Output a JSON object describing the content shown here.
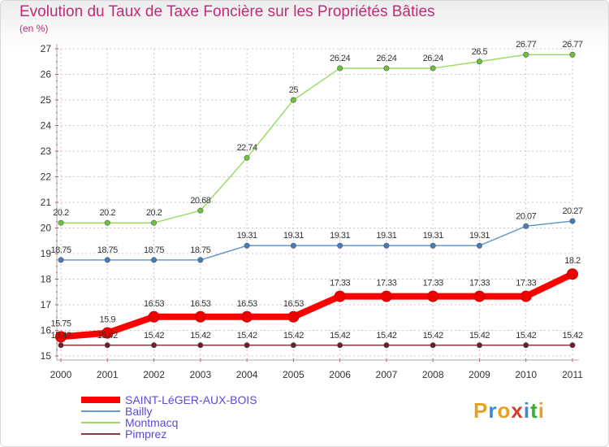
{
  "title": "Evolution du Taux de Taxe Foncière sur les Propriétés Bâties",
  "unit_label": "(en %)",
  "logo": {
    "text": "Proxiti",
    "letters": [
      "P",
      "r",
      "o",
      "x",
      "i",
      "t",
      "i"
    ],
    "colors": [
      "#e8a020",
      "#3a8ad8",
      "#e8a020",
      "#d93a2a",
      "#3a8ad8",
      "#3aa83a",
      "#e8a020"
    ]
  },
  "chart_data": {
    "type": "line",
    "x": [
      "2000",
      "2001",
      "2002",
      "2003",
      "2004",
      "2005",
      "2006",
      "2007",
      "2008",
      "2009",
      "2010",
      "2011"
    ],
    "ylim": [
      15,
      27
    ],
    "yticks": [
      "15",
      "16",
      "17",
      "18",
      "19",
      "20",
      "21",
      "22",
      "23",
      "24",
      "25",
      "26",
      "27"
    ],
    "grid": true,
    "legend_position": "bottom-left",
    "series": [
      {
        "name": "Montmacq",
        "color": "#99dd66",
        "marker": "#6cc23a",
        "thick": false,
        "values": [
          20.2,
          20.2,
          20.2,
          20.68,
          22.74,
          25,
          26.24,
          26.24,
          26.24,
          26.5,
          26.77,
          26.77
        ],
        "labels": [
          "20.2",
          "20.2",
          "20.2",
          "20.68",
          "22.74",
          "25",
          "26.24",
          "26.24",
          "26.24",
          "26.5",
          "26.77",
          "26.77"
        ]
      },
      {
        "name": "Bailly",
        "color": "#6699cc",
        "marker": "#3f7fc2",
        "thick": false,
        "values": [
          18.75,
          18.75,
          18.75,
          18.75,
          19.31,
          19.31,
          19.31,
          19.31,
          19.31,
          19.31,
          20.07,
          20.27
        ],
        "labels": [
          "18.75",
          "18.75",
          "18.75",
          "18.75",
          "19.31",
          "19.31",
          "19.31",
          "19.31",
          "19.31",
          "19.31",
          "20.07",
          "20.27"
        ]
      },
      {
        "name": "SAINT-LéGER-AUX-BOIS",
        "color": "#ff0000",
        "marker": "#ee0000",
        "thick": true,
        "values": [
          15.75,
          15.9,
          16.53,
          16.53,
          16.53,
          16.53,
          17.33,
          17.33,
          17.33,
          17.33,
          17.33,
          18.2
        ],
        "labels": [
          "15.75",
          "15.9",
          "16.53",
          "16.53",
          "16.53",
          "16.53",
          "17.33",
          "17.33",
          "17.33",
          "17.33",
          "17.33",
          "18.2"
        ]
      },
      {
        "name": "Pimprez",
        "color": "#8a3a3a",
        "marker": "#6a1f2a",
        "thick": false,
        "values": [
          15.42,
          15.42,
          15.42,
          15.42,
          15.42,
          15.42,
          15.42,
          15.42,
          15.42,
          15.42,
          15.42,
          15.42
        ],
        "labels": [
          "15.42",
          "15.42",
          "15.42",
          "15.42",
          "15.42",
          "15.42",
          "15.42",
          "15.42",
          "15.42",
          "15.42",
          "15.42",
          "15.42"
        ]
      }
    ],
    "legend": [
      {
        "name": "SAINT-LéGER-AUX-BOIS",
        "color": "#ff0000",
        "thick": true
      },
      {
        "name": "Bailly",
        "color": "#6699cc",
        "thick": false
      },
      {
        "name": "Montmacq",
        "color": "#99dd66",
        "thick": false
      },
      {
        "name": "Pimprez",
        "color": "#8a3a3a",
        "thick": false
      }
    ]
  }
}
